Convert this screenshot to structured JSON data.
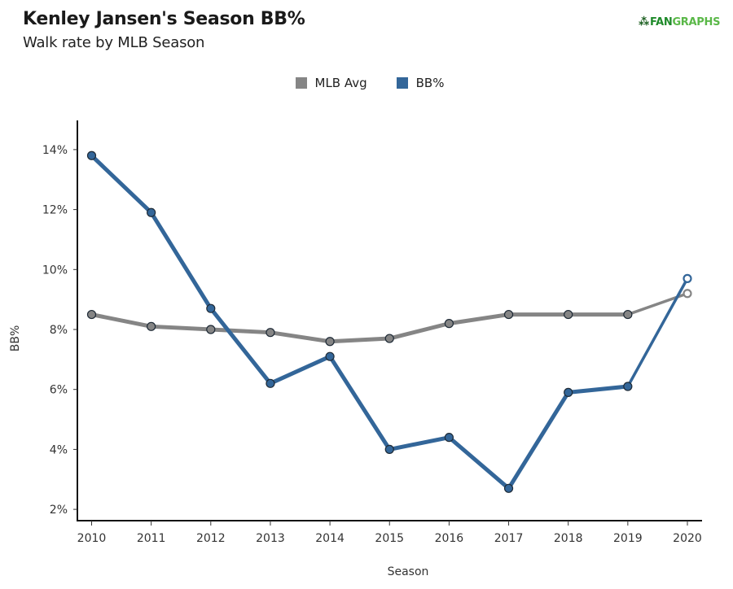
{
  "header": {
    "title": "Kenley Jansen's Season BB%",
    "subtitle": "Walk rate by MLB Season",
    "logo_mark": "⁂",
    "logo_fan": "FAN",
    "logo_graphs": "GRAPHS"
  },
  "colors": {
    "mlb_avg": "#858585",
    "bb_pct": "#336699",
    "axis": "#111111"
  },
  "chart_data": {
    "type": "line",
    "title": "Kenley Jansen's Season BB%",
    "subtitle": "Walk rate by MLB Season",
    "xlabel": "Season",
    "ylabel": "BB%",
    "x": [
      2010,
      2011,
      2012,
      2013,
      2014,
      2015,
      2016,
      2017,
      2018,
      2019,
      2020
    ],
    "x_tick_labels": [
      "2010",
      "2011",
      "2012",
      "2013",
      "2014",
      "2015",
      "2016",
      "2017",
      "2018",
      "2019",
      "2020"
    ],
    "y_ticks": [
      2,
      4,
      6,
      8,
      10,
      12,
      14
    ],
    "y_tick_labels": [
      "2%",
      "4%",
      "6%",
      "8%",
      "10%",
      "12%",
      "14%"
    ],
    "ylim": [
      1.6,
      14.9
    ],
    "grid": false,
    "legend_position": "top-center",
    "series": [
      {
        "name": "MLB Avg",
        "color": "#858585",
        "values": [
          8.5,
          8.1,
          8.0,
          7.9,
          7.6,
          7.7,
          8.2,
          8.5,
          8.5,
          8.5,
          9.2
        ]
      },
      {
        "name": "BB%",
        "color": "#336699",
        "values": [
          13.8,
          11.9,
          8.7,
          6.2,
          7.1,
          4.0,
          4.4,
          2.7,
          5.9,
          6.1,
          9.7
        ]
      }
    ],
    "hollow_last_point": true
  }
}
